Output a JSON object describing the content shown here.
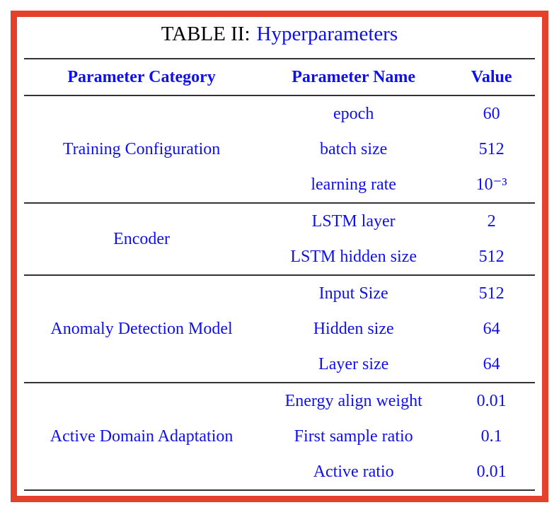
{
  "colors": {
    "frame_border": "#e3412b",
    "text_blue": "#1010ee",
    "title_black": "#000000",
    "rule_dark": "#333333",
    "background": "#ffffff"
  },
  "title": {
    "label": "TABLE II:",
    "caption": "Hyperparameters"
  },
  "table": {
    "headers": [
      "Parameter Category",
      "Parameter Name",
      "Value"
    ],
    "sections": [
      {
        "category": "Training Configuration",
        "rows": [
          [
            "epoch",
            "60"
          ],
          [
            "batch size",
            "512"
          ],
          [
            "learning rate",
            "10⁻³"
          ]
        ]
      },
      {
        "category": "Encoder",
        "rows": [
          [
            "LSTM layer",
            "2"
          ],
          [
            "LSTM hidden size",
            "512"
          ]
        ]
      },
      {
        "category": "Anomaly Detection Model",
        "rows": [
          [
            "Input Size",
            "512"
          ],
          [
            "Hidden size",
            "64"
          ],
          [
            "Layer size",
            "64"
          ]
        ]
      },
      {
        "category": "Active Domain Adaptation",
        "rows": [
          [
            "Energy align weight",
            "0.01"
          ],
          [
            "First sample ratio",
            "0.1"
          ],
          [
            "Active ratio",
            "0.01"
          ]
        ]
      }
    ]
  }
}
